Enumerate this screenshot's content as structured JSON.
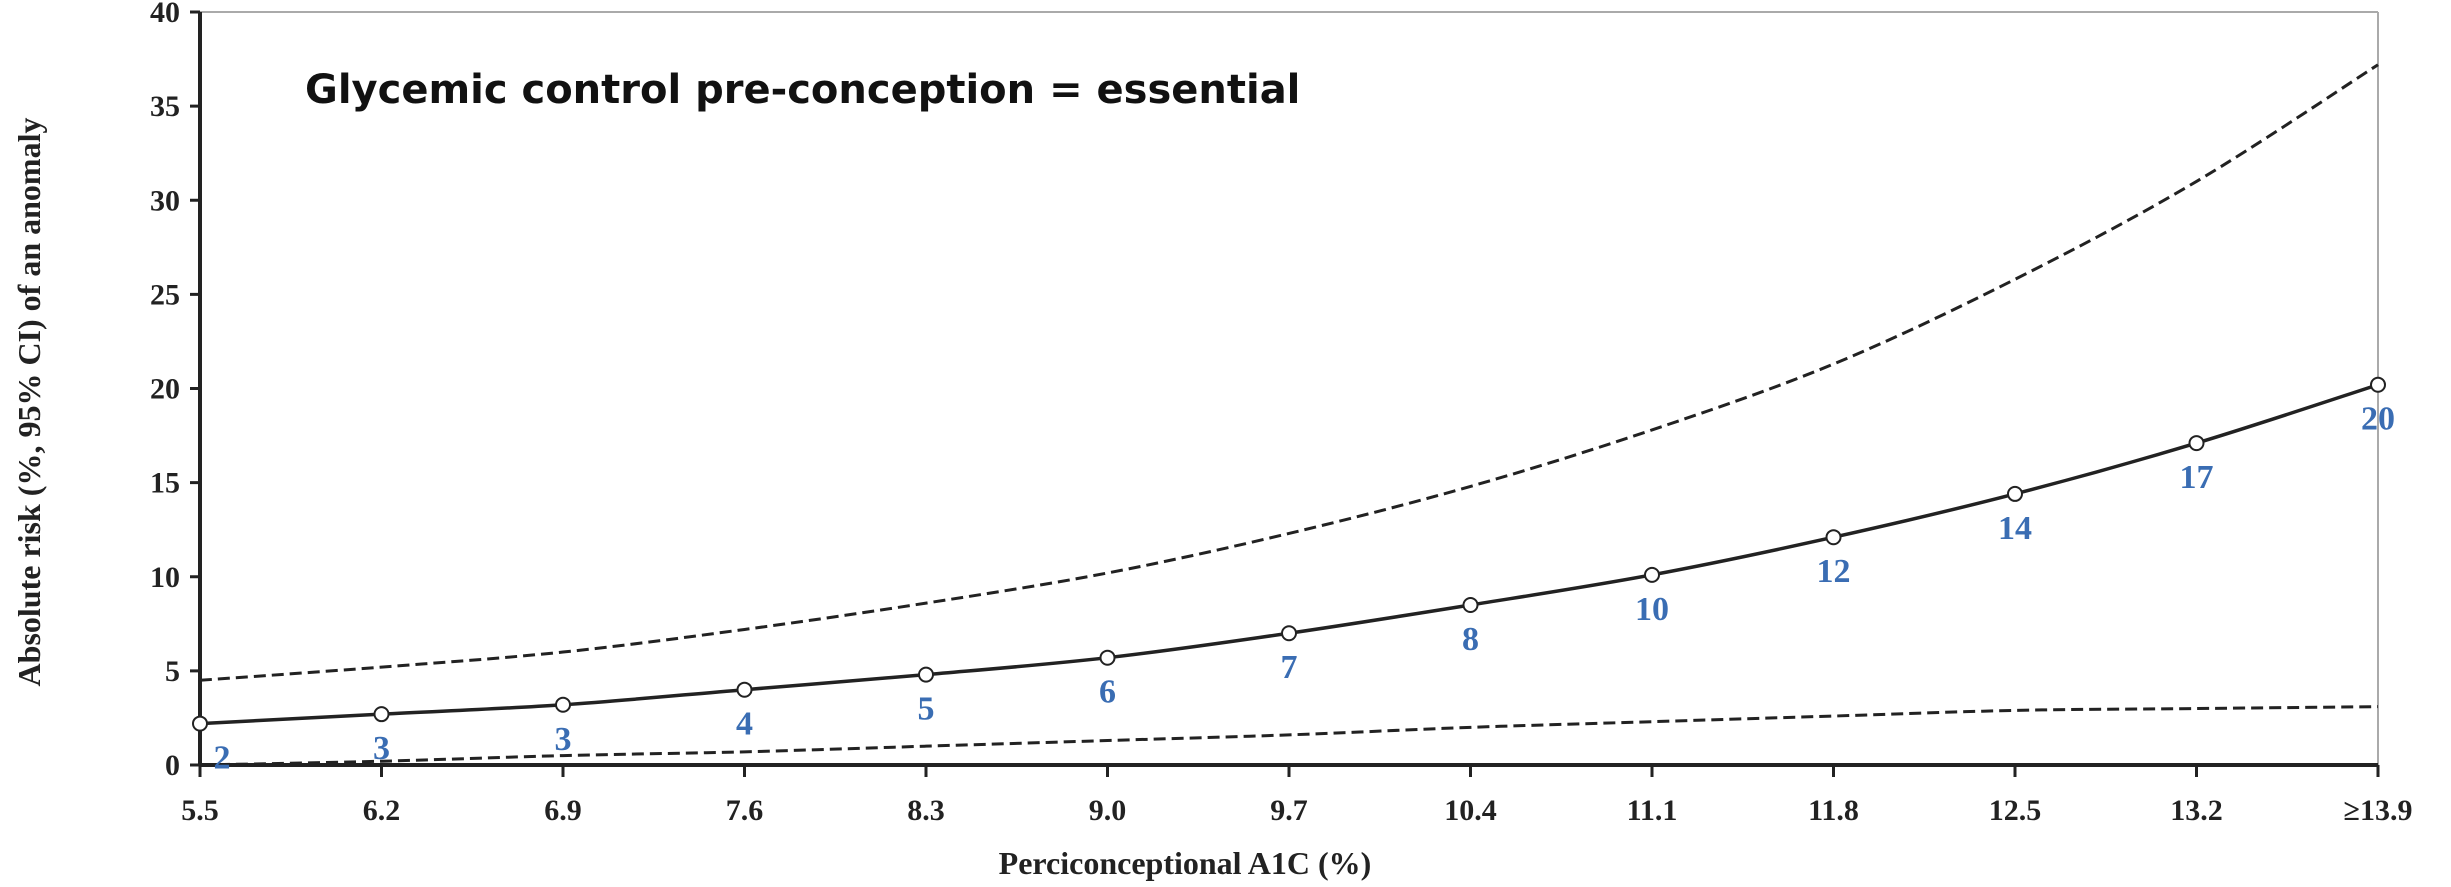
{
  "chart_data": {
    "type": "line",
    "title": "",
    "annotation": "Glycemic control pre-conception = essential",
    "xlabel": "Perciconceptional A1C (%)",
    "ylabel": "Absolute risk (%, 95% CI) of an anomaly",
    "ylim": [
      0,
      40
    ],
    "yticks": [
      "0",
      "5",
      "10",
      "15",
      "20",
      "25",
      "30",
      "35",
      "40"
    ],
    "categories": [
      "5.5",
      "6.2",
      "6.9",
      "7.6",
      "8.3",
      "9.0",
      "9.7",
      "10.4",
      "11.1",
      "11.8",
      "12.5",
      "13.2",
      "≥13.9"
    ],
    "grid": false,
    "series": [
      {
        "role": "estimate",
        "style": "solid",
        "markers": true,
        "values": [
          2.2,
          2.7,
          3.2,
          4.0,
          4.8,
          5.7,
          7.0,
          8.5,
          10.1,
          12.1,
          14.4,
          17.1,
          20.2
        ],
        "labels": [
          "2",
          "3",
          "3",
          "4",
          "5",
          "6",
          "7",
          "8",
          "10",
          "12",
          "14",
          "17",
          "20"
        ]
      },
      {
        "role": "upper-95ci",
        "style": "dashed",
        "markers": false,
        "values": [
          4.5,
          5.2,
          6.0,
          7.2,
          8.6,
          10.2,
          12.3,
          14.8,
          17.8,
          21.3,
          25.8,
          31.0,
          37.2
        ]
      },
      {
        "role": "lower-95ci",
        "style": "dashed",
        "markers": false,
        "values": [
          0.0,
          0.2,
          0.5,
          0.7,
          1.0,
          1.3,
          1.6,
          2.0,
          2.3,
          2.6,
          2.9,
          3.0,
          3.1
        ]
      }
    ],
    "colors": {
      "line": "#222222",
      "data_label": "#3a6db3",
      "frame": "#999999"
    }
  }
}
